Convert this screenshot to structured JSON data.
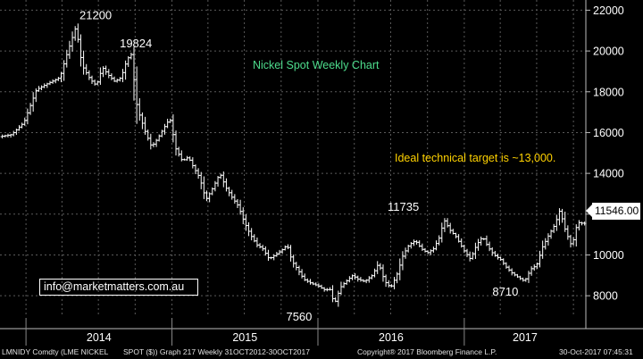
{
  "chart_data": {
    "type": "ohlc",
    "title": "Nickel Spot Weekly Chart",
    "instrument": "LMNIDY Comdty (LME NICKEL SPOT ($))",
    "ylim": [
      7000,
      22500
    ],
    "y_ticks": [
      8000,
      10000,
      12000,
      14000,
      16000,
      18000,
      20000,
      22000
    ],
    "y_tick_labels": [
      "8000",
      "10000",
      "12000",
      "14000",
      "16000",
      "18000",
      "20000",
      "22000"
    ],
    "x_ticks": [
      "2014",
      "2015",
      "2016",
      "2017"
    ],
    "grid": true,
    "last_price": "11546.00",
    "annotations": [
      {
        "label": "21200",
        "value": 21200,
        "date": "2014-05"
      },
      {
        "label": "19824",
        "value": 19824,
        "date": "2014-09"
      },
      {
        "label": "7560",
        "value": 7560,
        "date": "2015-11"
      },
      {
        "label": "11735",
        "value": 11735,
        "date": "2016-08"
      },
      {
        "label": "8710",
        "value": 8710,
        "date": "2017-05"
      }
    ],
    "note": "Ideal technical target is ~13,000.",
    "series_path": [
      [
        "2013-10-31",
        15800
      ],
      [
        "2013-11-30",
        15900
      ],
      [
        "2013-12-31",
        16500
      ],
      [
        "2014-01-31",
        18100
      ],
      [
        "2014-02-28",
        18400
      ],
      [
        "2014-03-31",
        18700
      ],
      [
        "2014-04-15",
        19700
      ],
      [
        "2014-05-10",
        21200
      ],
      [
        "2014-05-25",
        19300
      ],
      [
        "2014-06-15",
        18600
      ],
      [
        "2014-06-30",
        18300
      ],
      [
        "2014-07-15",
        19200
      ],
      [
        "2014-07-31",
        18800
      ],
      [
        "2014-08-15",
        18500
      ],
      [
        "2014-08-31",
        18700
      ],
      [
        "2014-09-15",
        19600
      ],
      [
        "2014-09-25",
        19824
      ],
      [
        "2014-10-10",
        17200
      ],
      [
        "2014-10-31",
        16000
      ],
      [
        "2014-11-15",
        15300
      ],
      [
        "2014-11-30",
        15700
      ],
      [
        "2014-12-15",
        16200
      ],
      [
        "2014-12-31",
        16700
      ],
      [
        "2015-01-15",
        15200
      ],
      [
        "2015-01-31",
        14600
      ],
      [
        "2015-02-15",
        14800
      ],
      [
        "2015-02-28",
        14300
      ],
      [
        "2015-03-15",
        13800
      ],
      [
        "2015-03-31",
        12700
      ],
      [
        "2015-04-15",
        13200
      ],
      [
        "2015-05-05",
        14000
      ],
      [
        "2015-05-20",
        13300
      ],
      [
        "2015-06-05",
        12800
      ],
      [
        "2015-06-20",
        12400
      ],
      [
        "2015-07-05",
        11600
      ],
      [
        "2015-07-20",
        11000
      ],
      [
        "2015-08-05",
        10500
      ],
      [
        "2015-08-20",
        10300
      ],
      [
        "2015-09-05",
        9800
      ],
      [
        "2015-09-20",
        10000
      ],
      [
        "2015-10-05",
        10200
      ],
      [
        "2015-10-20",
        10500
      ],
      [
        "2015-11-01",
        9700
      ],
      [
        "2015-11-15",
        9300
      ],
      [
        "2015-12-01",
        8800
      ],
      [
        "2015-12-20",
        8600
      ],
      [
        "2016-01-05",
        8500
      ],
      [
        "2016-01-20",
        8300
      ],
      [
        "2016-02-05",
        8300
      ],
      [
        "2016-02-15",
        7560
      ],
      [
        "2016-03-01",
        8400
      ],
      [
        "2016-03-15",
        8700
      ],
      [
        "2016-04-01",
        9000
      ],
      [
        "2016-04-15",
        8800
      ],
      [
        "2016-05-01",
        8700
      ],
      [
        "2016-05-20",
        9000
      ],
      [
        "2016-06-05",
        9600
      ],
      [
        "2016-06-20",
        8700
      ],
      [
        "2016-07-05",
        8400
      ],
      [
        "2016-07-20",
        9000
      ],
      [
        "2016-08-05",
        10000
      ],
      [
        "2016-08-20",
        10500
      ],
      [
        "2016-09-05",
        10700
      ],
      [
        "2016-09-20",
        10300
      ],
      [
        "2016-10-05",
        10100
      ],
      [
        "2016-10-20",
        10300
      ],
      [
        "2016-11-05",
        10900
      ],
      [
        "2016-11-15",
        11735
      ],
      [
        "2016-12-01",
        11200
      ],
      [
        "2016-12-15",
        10900
      ],
      [
        "2017-01-05",
        10200
      ],
      [
        "2017-01-20",
        9800
      ],
      [
        "2017-02-05",
        10500
      ],
      [
        "2017-02-20",
        10900
      ],
      [
        "2017-03-05",
        10400
      ],
      [
        "2017-03-20",
        10000
      ],
      [
        "2017-04-05",
        9800
      ],
      [
        "2017-04-20",
        9400
      ],
      [
        "2017-05-05",
        9100
      ],
      [
        "2017-05-20",
        8900
      ],
      [
        "2017-06-05",
        8710
      ],
      [
        "2017-06-20",
        9300
      ],
      [
        "2017-07-05",
        9500
      ],
      [
        "2017-07-20",
        10400
      ],
      [
        "2017-08-05",
        11000
      ],
      [
        "2017-08-20",
        11500
      ],
      [
        "2017-09-01",
        12200
      ],
      [
        "2017-09-15",
        11200
      ],
      [
        "2017-10-01",
        10400
      ],
      [
        "2017-10-15",
        11600
      ],
      [
        "2017-10-30",
        11546
      ]
    ]
  },
  "overlay": {
    "email": "info@marketmatters.com.au"
  },
  "footer": {
    "ticker": "LMNIDY Comdty (LME NICKEL",
    "graph": "SPOT ($)) Graph 217 Weekly 31OCT2012-30OCT2017",
    "copyright": "Copyright® 2017 Bloomberg Finance L.P.",
    "timestamp": "30-Oct-2017 07:45:31"
  },
  "colors": {
    "background": "#000000",
    "bars": "#ffffff",
    "grid": "#5a5a5a",
    "title": "#4ddc8c",
    "note": "#ffd200"
  }
}
